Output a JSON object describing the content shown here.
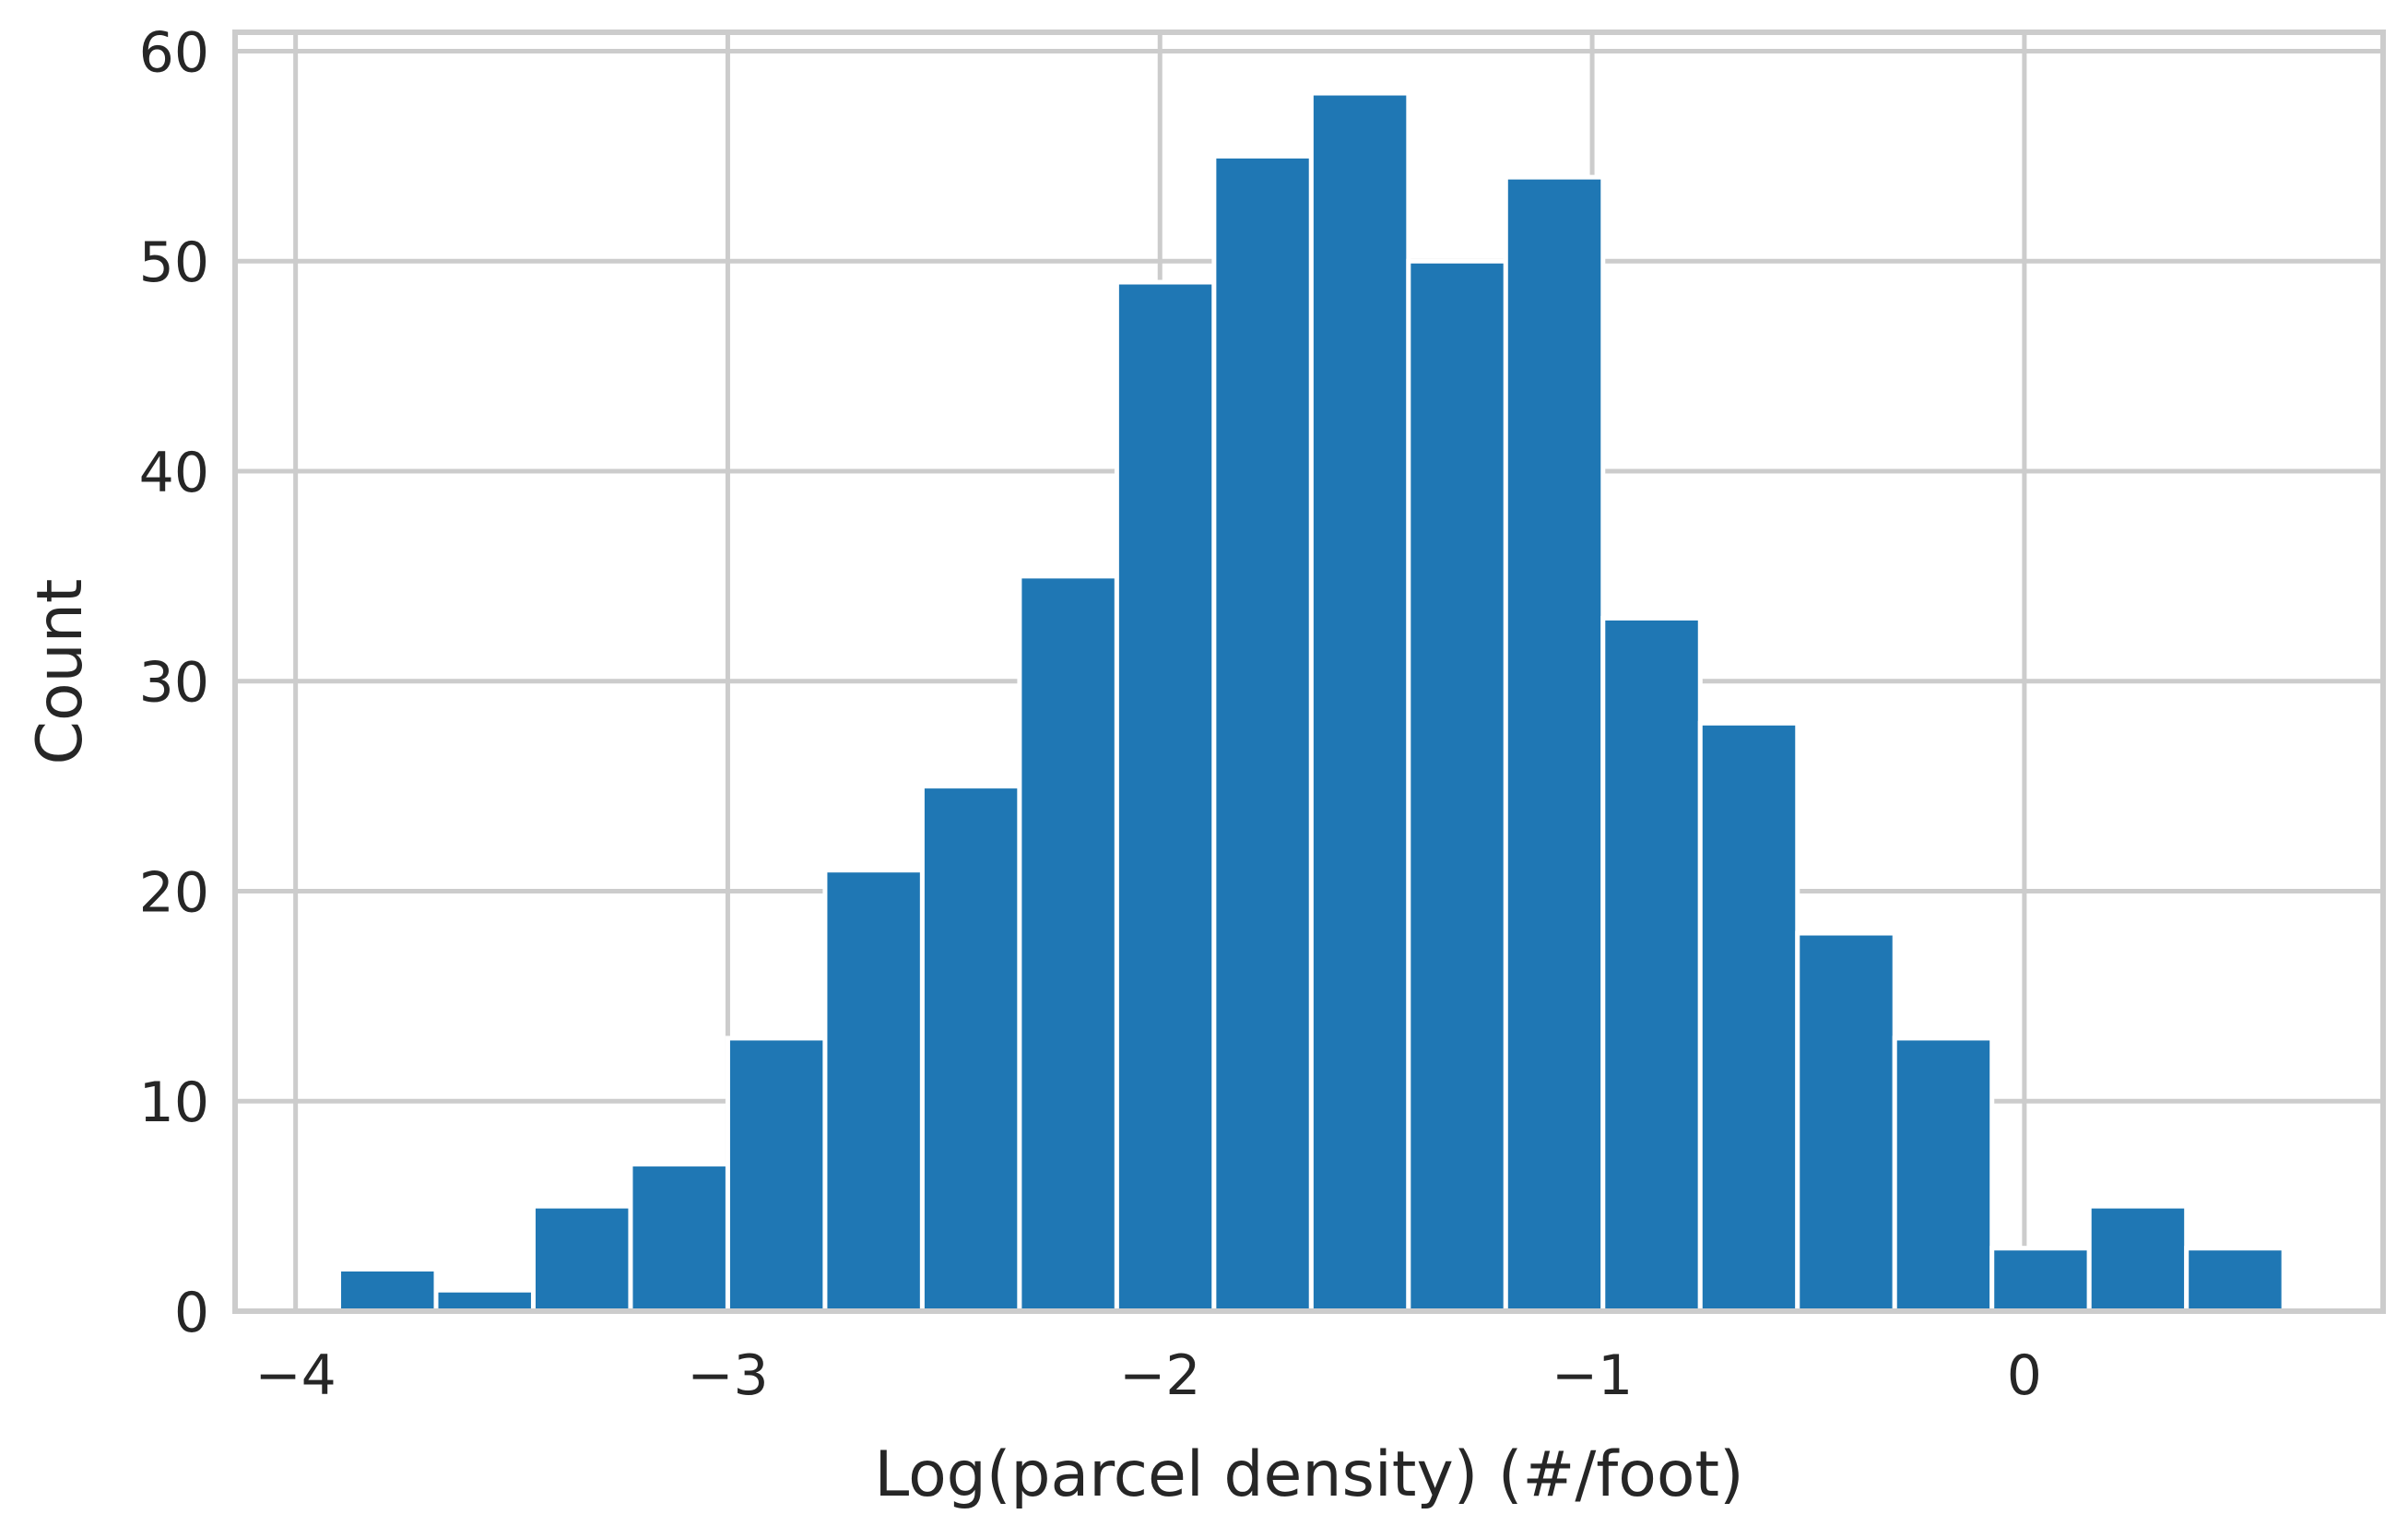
{
  "chart_data": {
    "type": "bar",
    "title": "",
    "xlabel": "Log(parcel density) (#/foot)",
    "ylabel": "Count",
    "xlim": [
      -4.14,
      0.83
    ],
    "ylim": [
      0,
      60.9
    ],
    "grid": true,
    "bar_color": "#1f77b4",
    "bar_edge_color": "#ffffff",
    "grid_color": "#cccccc",
    "text_color": "#262626",
    "x_ticks": [
      -4,
      -3,
      -2,
      -1,
      0
    ],
    "x_tick_labels": [
      "−4",
      "−3",
      "−2",
      "−1",
      "0"
    ],
    "y_ticks": [
      0,
      10,
      20,
      30,
      40,
      50,
      60
    ],
    "y_tick_labels": [
      "0",
      "10",
      "20",
      "30",
      "40",
      "50",
      "60"
    ],
    "bins": [
      {
        "x0": -3.9,
        "x1": -3.675,
        "value": 2
      },
      {
        "x0": -3.675,
        "x1": -3.45,
        "value": 1
      },
      {
        "x0": -3.45,
        "x1": -3.225,
        "value": 5
      },
      {
        "x0": -3.225,
        "x1": -3.0,
        "value": 7
      },
      {
        "x0": -3.0,
        "x1": -2.775,
        "value": 13
      },
      {
        "x0": -2.775,
        "x1": -2.55,
        "value": 21
      },
      {
        "x0": -2.55,
        "x1": -2.325,
        "value": 25
      },
      {
        "x0": -2.325,
        "x1": -2.1,
        "value": 35
      },
      {
        "x0": -2.1,
        "x1": -1.875,
        "value": 49
      },
      {
        "x0": -1.875,
        "x1": -1.65,
        "value": 55
      },
      {
        "x0": -1.65,
        "x1": -1.425,
        "value": 58
      },
      {
        "x0": -1.425,
        "x1": -1.2,
        "value": 50
      },
      {
        "x0": -1.2,
        "x1": -0.975,
        "value": 54
      },
      {
        "x0": -0.975,
        "x1": -0.75,
        "value": 33
      },
      {
        "x0": -0.75,
        "x1": -0.525,
        "value": 28
      },
      {
        "x0": -0.525,
        "x1": -0.3,
        "value": 18
      },
      {
        "x0": -0.3,
        "x1": -0.075,
        "value": 13
      },
      {
        "x0": -0.075,
        "x1": 0.15,
        "value": 3
      },
      {
        "x0": 0.15,
        "x1": 0.375,
        "value": 5
      },
      {
        "x0": 0.375,
        "x1": 0.6,
        "value": 3
      }
    ]
  }
}
